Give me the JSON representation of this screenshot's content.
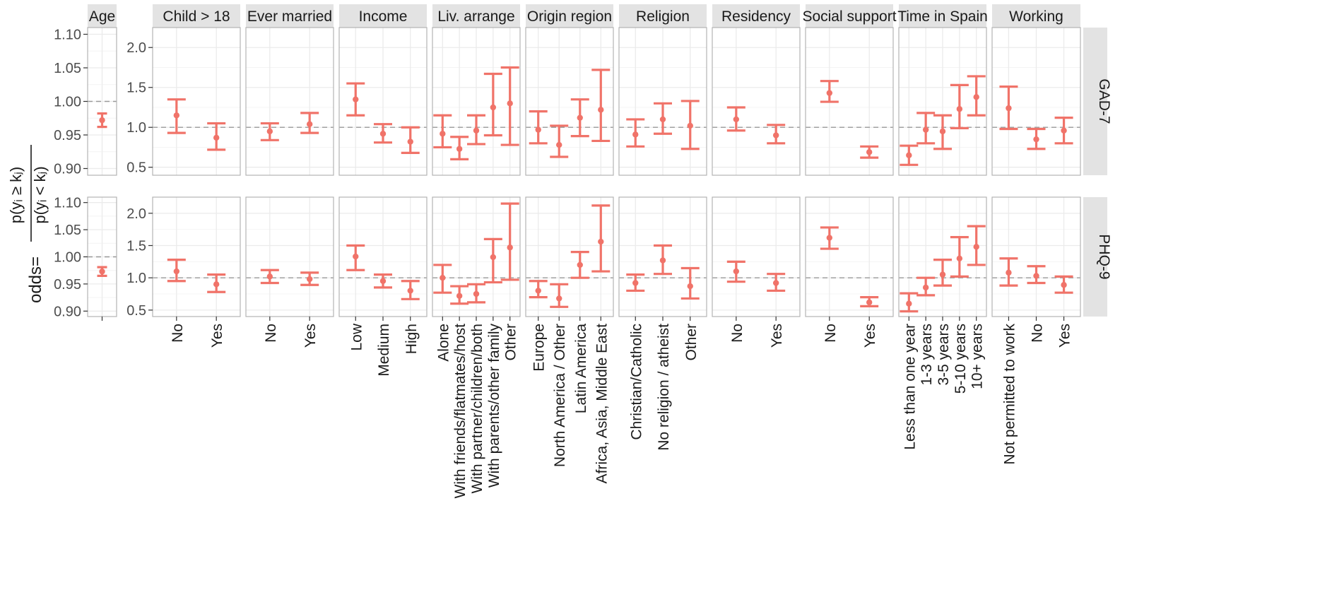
{
  "chart_data": {
    "type": "errorbar",
    "ylabel_main": "odds=",
    "ylabel_num": "p(yᵢ ≥ kⱼ)",
    "ylabel_den": "p(yᵢ < kⱼ)",
    "rows": [
      "GAD-7",
      "PHQ-9"
    ],
    "age_axis": {
      "ylim": [
        0.89,
        1.11
      ],
      "ticks": [
        "0.90",
        "0.95",
        "1.00",
        "1.05",
        "1.10"
      ],
      "tick_values": [
        0.9,
        0.95,
        1.0,
        1.05,
        1.1
      ]
    },
    "other_axis": {
      "ylim": [
        0.4,
        2.25
      ],
      "ticks": [
        "0.5",
        "1.0",
        "1.5",
        "2.0"
      ],
      "tick_values": [
        0.5,
        1.0,
        1.5,
        2.0
      ]
    },
    "reference_line": 1.0,
    "colors": {
      "point": "#f07369",
      "strip_bg": "#e3e3e3",
      "panel_border": "#b3b3b3",
      "grid": "#ebebeb",
      "dash": "#999999",
      "text": "#1a1a1a",
      "tick": "#4d4d4d"
    },
    "panels": [
      {
        "name": "Age",
        "categories": [
          ""
        ],
        "series": {
          "GAD-7": [
            {
              "est": 0.972,
              "lo": 0.962,
              "hi": 0.982
            }
          ],
          "PHQ-9": [
            {
              "est": 0.973,
              "lo": 0.965,
              "hi": 0.981
            }
          ]
        }
      },
      {
        "name": "Child > 18",
        "categories": [
          "No",
          "Yes"
        ],
        "series": {
          "GAD-7": [
            {
              "est": 1.15,
              "lo": 0.93,
              "hi": 1.35
            },
            {
              "est": 0.87,
              "lo": 0.72,
              "hi": 1.05
            }
          ],
          "PHQ-9": [
            {
              "est": 1.1,
              "lo": 0.95,
              "hi": 1.28
            },
            {
              "est": 0.9,
              "lo": 0.78,
              "hi": 1.05
            }
          ]
        }
      },
      {
        "name": "Ever married",
        "categories": [
          "No",
          "Yes"
        ],
        "series": {
          "GAD-7": [
            {
              "est": 0.95,
              "lo": 0.84,
              "hi": 1.05
            },
            {
              "est": 1.04,
              "lo": 0.93,
              "hi": 1.18
            }
          ],
          "PHQ-9": [
            {
              "est": 1.02,
              "lo": 0.92,
              "hi": 1.12
            },
            {
              "est": 0.98,
              "lo": 0.89,
              "hi": 1.08
            }
          ]
        }
      },
      {
        "name": "Income",
        "categories": [
          "Low",
          "Medium",
          "High"
        ],
        "series": {
          "GAD-7": [
            {
              "est": 1.35,
              "lo": 1.15,
              "hi": 1.55
            },
            {
              "est": 0.92,
              "lo": 0.81,
              "hi": 1.04
            },
            {
              "est": 0.82,
              "lo": 0.68,
              "hi": 1.0
            }
          ],
          "PHQ-9": [
            {
              "est": 1.33,
              "lo": 1.12,
              "hi": 1.5
            },
            {
              "est": 0.95,
              "lo": 0.85,
              "hi": 1.05
            },
            {
              "est": 0.8,
              "lo": 0.67,
              "hi": 0.95
            }
          ]
        }
      },
      {
        "name": "Liv. arrange",
        "categories": [
          "Alone",
          "With friends/flatmates/host",
          "With partner/children/both",
          "With parents/other family",
          "Other"
        ],
        "series": {
          "GAD-7": [
            {
              "est": 0.92,
              "lo": 0.75,
              "hi": 1.15
            },
            {
              "est": 0.73,
              "lo": 0.6,
              "hi": 0.88
            },
            {
              "est": 0.96,
              "lo": 0.79,
              "hi": 1.15
            },
            {
              "est": 1.25,
              "lo": 0.9,
              "hi": 1.67
            },
            {
              "est": 1.3,
              "lo": 0.78,
              "hi": 1.75
            }
          ],
          "PHQ-9": [
            {
              "est": 1.0,
              "lo": 0.77,
              "hi": 1.2
            },
            {
              "est": 0.72,
              "lo": 0.6,
              "hi": 0.87
            },
            {
              "est": 0.75,
              "lo": 0.62,
              "hi": 0.9
            },
            {
              "est": 1.32,
              "lo": 0.93,
              "hi": 1.6
            },
            {
              "est": 1.47,
              "lo": 0.97,
              "hi": 2.15
            }
          ]
        }
      },
      {
        "name": "Origin region",
        "categories": [
          "Europe",
          "North America / Other",
          "Latin America",
          "Africa, Asia, Middle East"
        ],
        "series": {
          "GAD-7": [
            {
              "est": 0.97,
              "lo": 0.8,
              "hi": 1.2
            },
            {
              "est": 0.78,
              "lo": 0.63,
              "hi": 1.02
            },
            {
              "est": 1.12,
              "lo": 0.89,
              "hi": 1.35
            },
            {
              "est": 1.22,
              "lo": 0.83,
              "hi": 1.72
            }
          ],
          "PHQ-9": [
            {
              "est": 0.8,
              "lo": 0.7,
              "hi": 0.95
            },
            {
              "est": 0.68,
              "lo": 0.55,
              "hi": 0.9
            },
            {
              "est": 1.2,
              "lo": 1.0,
              "hi": 1.4
            },
            {
              "est": 1.56,
              "lo": 1.1,
              "hi": 2.12
            }
          ]
        }
      },
      {
        "name": "Religion",
        "categories": [
          "Christian/Catholic",
          "No religion / atheist",
          "Other"
        ],
        "series": {
          "GAD-7": [
            {
              "est": 0.91,
              "lo": 0.76,
              "hi": 1.1
            },
            {
              "est": 1.1,
              "lo": 0.92,
              "hi": 1.3
            },
            {
              "est": 1.02,
              "lo": 0.73,
              "hi": 1.33
            }
          ],
          "PHQ-9": [
            {
              "est": 0.92,
              "lo": 0.8,
              "hi": 1.05
            },
            {
              "est": 1.27,
              "lo": 1.06,
              "hi": 1.5
            },
            {
              "est": 0.87,
              "lo": 0.68,
              "hi": 1.15
            }
          ]
        }
      },
      {
        "name": "Residency",
        "categories": [
          "No",
          "Yes"
        ],
        "series": {
          "GAD-7": [
            {
              "est": 1.1,
              "lo": 0.96,
              "hi": 1.25
            },
            {
              "est": 0.9,
              "lo": 0.8,
              "hi": 1.03
            }
          ],
          "PHQ-9": [
            {
              "est": 1.1,
              "lo": 0.94,
              "hi": 1.25
            },
            {
              "est": 0.92,
              "lo": 0.8,
              "hi": 1.06
            }
          ]
        }
      },
      {
        "name": "Social support",
        "categories": [
          "No",
          "Yes"
        ],
        "series": {
          "GAD-7": [
            {
              "est": 1.43,
              "lo": 1.32,
              "hi": 1.58
            },
            {
              "est": 0.69,
              "lo": 0.62,
              "hi": 0.76
            }
          ],
          "PHQ-9": [
            {
              "est": 1.62,
              "lo": 1.45,
              "hi": 1.78
            },
            {
              "est": 0.62,
              "lo": 0.56,
              "hi": 0.7
            }
          ]
        }
      },
      {
        "name": "Time in Spain",
        "categories": [
          "Less than one year",
          "1-3 years",
          "3-5 years",
          "5-10 years",
          "10+ years"
        ],
        "series": {
          "GAD-7": [
            {
              "est": 0.65,
              "lo": 0.53,
              "hi": 0.77
            },
            {
              "est": 0.97,
              "lo": 0.8,
              "hi": 1.18
            },
            {
              "est": 0.95,
              "lo": 0.73,
              "hi": 1.15
            },
            {
              "est": 1.23,
              "lo": 0.99,
              "hi": 1.53
            },
            {
              "est": 1.38,
              "lo": 1.15,
              "hi": 1.64
            }
          ],
          "PHQ-9": [
            {
              "est": 0.6,
              "lo": 0.48,
              "hi": 0.76
            },
            {
              "est": 0.85,
              "lo": 0.73,
              "hi": 1.0
            },
            {
              "est": 1.05,
              "lo": 0.88,
              "hi": 1.28
            },
            {
              "est": 1.3,
              "lo": 1.02,
              "hi": 1.63
            },
            {
              "est": 1.48,
              "lo": 1.2,
              "hi": 1.8
            }
          ]
        }
      },
      {
        "name": "Working",
        "categories": [
          "Not permitted to work",
          "No",
          "Yes"
        ],
        "series": {
          "GAD-7": [
            {
              "est": 1.24,
              "lo": 0.98,
              "hi": 1.51
            },
            {
              "est": 0.85,
              "lo": 0.73,
              "hi": 0.98
            },
            {
              "est": 0.96,
              "lo": 0.8,
              "hi": 1.12
            }
          ],
          "PHQ-9": [
            {
              "est": 1.08,
              "lo": 0.88,
              "hi": 1.3
            },
            {
              "est": 1.03,
              "lo": 0.92,
              "hi": 1.18
            },
            {
              "est": 0.89,
              "lo": 0.77,
              "hi": 1.02
            }
          ]
        }
      }
    ]
  }
}
